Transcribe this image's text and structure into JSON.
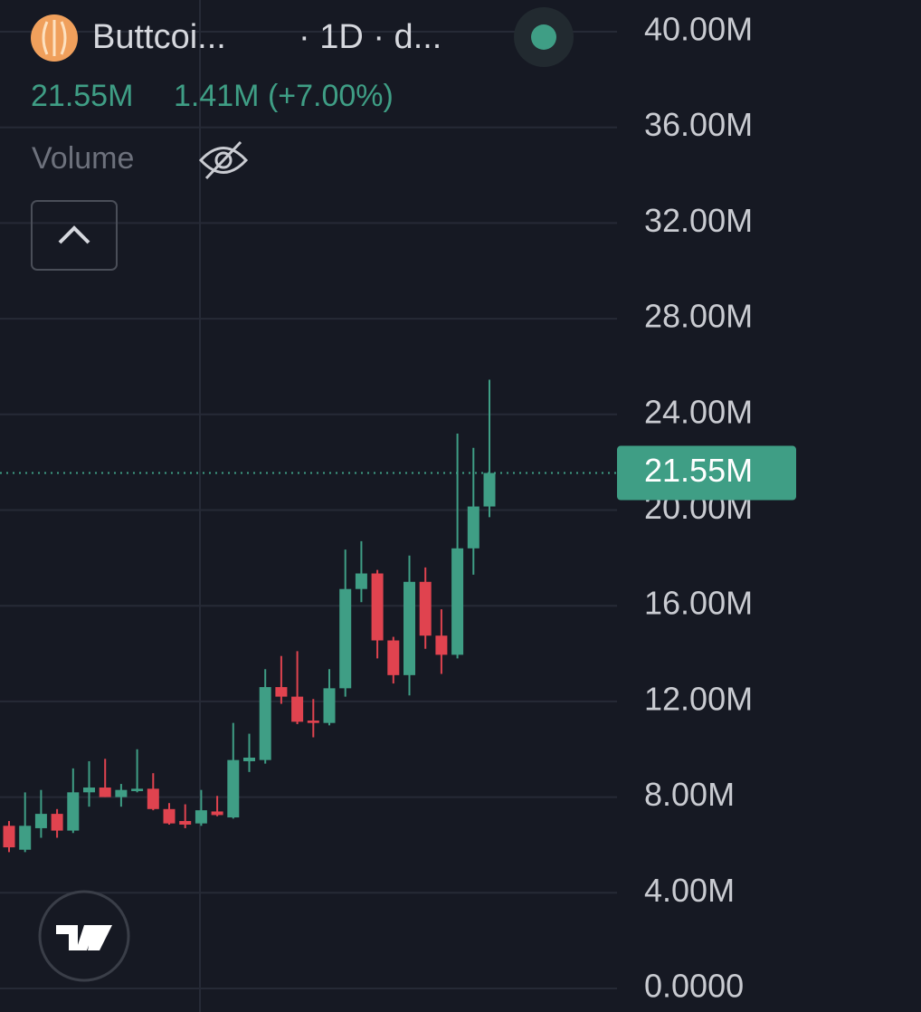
{
  "header": {
    "symbol": "Buttcoi...",
    "interval": "· 1D · d...",
    "price": "21.55M",
    "change": "1.41M (+7.00%)",
    "indicator": "Volume"
  },
  "chart_data": {
    "type": "candlestick",
    "up_color": "#3f9e85",
    "down_color": "#e0434f",
    "grid": true,
    "ylim": [
      0,
      40
    ],
    "yticks": [
      {
        "value": 0,
        "label": "0.0000"
      },
      {
        "value": 4,
        "label": "4.00M"
      },
      {
        "value": 8,
        "label": "8.00M"
      },
      {
        "value": 12,
        "label": "12.00M"
      },
      {
        "value": 16,
        "label": "16.00M"
      },
      {
        "value": 20,
        "label": "20.00M"
      },
      {
        "value": 24,
        "label": "24.00M"
      },
      {
        "value": 28,
        "label": "28.00M"
      },
      {
        "value": 32,
        "label": "32.00M"
      },
      {
        "value": 36,
        "label": "36.00M"
      },
      {
        "value": 40,
        "label": "40.00M"
      }
    ],
    "last_price": {
      "value": 21.55,
      "label": "21.55M"
    },
    "open": [
      6.8,
      5.8,
      6.7,
      7.3,
      6.6,
      8.2,
      8.4,
      8.0,
      8.25,
      8.35,
      7.5,
      7.0,
      6.9,
      7.4,
      7.15,
      9.5,
      9.55,
      12.6,
      12.2,
      11.2,
      11.1,
      12.55,
      16.7,
      17.35,
      14.55,
      13.1,
      17.0,
      14.75,
      13.95,
      18.4,
      20.15
    ],
    "high": [
      7.0,
      8.2,
      8.3,
      7.5,
      9.2,
      9.5,
      9.6,
      8.55,
      10.0,
      9.0,
      7.75,
      7.7,
      8.3,
      8.05,
      11.1,
      10.65,
      13.35,
      13.9,
      14.1,
      12.1,
      13.35,
      18.35,
      18.7,
      17.5,
      14.7,
      18.1,
      17.6,
      15.85,
      23.2,
      22.6,
      25.45
    ],
    "low": [
      5.7,
      5.7,
      6.3,
      6.3,
      6.5,
      7.6,
      8.0,
      7.6,
      8.2,
      7.45,
      6.85,
      6.7,
      6.8,
      7.2,
      7.1,
      9.05,
      9.4,
      11.9,
      11.05,
      10.5,
      11.0,
      12.2,
      16.15,
      13.8,
      12.75,
      12.25,
      14.2,
      13.15,
      13.8,
      17.3,
      19.7
    ],
    "close": [
      5.9,
      6.8,
      7.3,
      6.6,
      8.2,
      8.4,
      8.0,
      8.3,
      8.35,
      7.5,
      6.9,
      6.85,
      7.45,
      7.25,
      9.55,
      9.65,
      12.6,
      12.2,
      11.15,
      11.1,
      12.55,
      16.7,
      17.35,
      14.55,
      13.1,
      17.0,
      14.75,
      13.95,
      18.4,
      20.15,
      21.55
    ]
  }
}
